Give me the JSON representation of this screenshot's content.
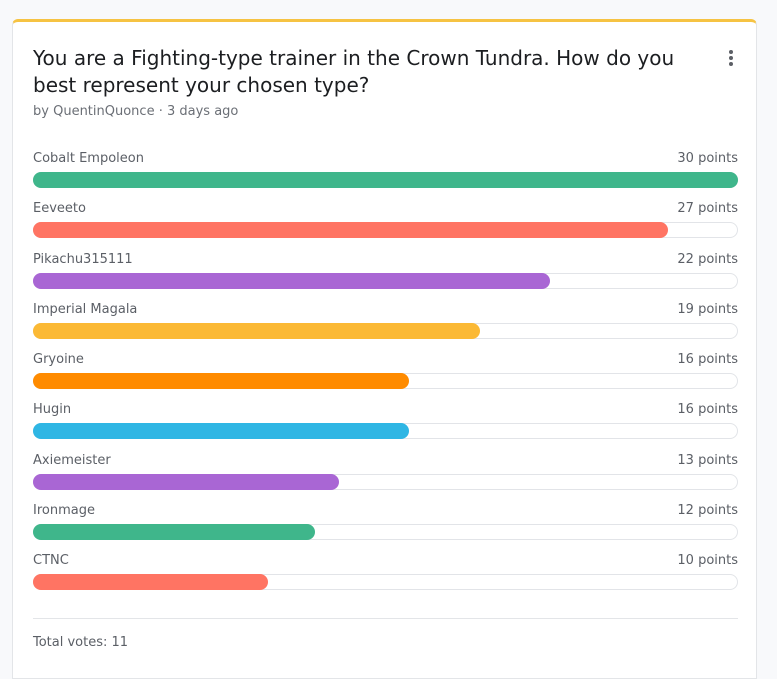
{
  "poll": {
    "title": "You are a Fighting-type trainer in the Crown Tundra. How do you best represent your chosen type?",
    "author_prefix": "by",
    "author": "QuentinQuonce",
    "separator": "·",
    "time_ago": "3 days ago",
    "menu_icon": "vertical-ellipsis-icon",
    "accent_color": "#f6c343",
    "max_points": 30,
    "options": [
      {
        "name": "Cobalt Empoleon",
        "points": 30,
        "points_label": "30 points",
        "color": "#3fb68b"
      },
      {
        "name": "Eeveeto",
        "points": 27,
        "points_label": "27 points",
        "color": "#ff7463"
      },
      {
        "name": "Pikachu315111",
        "points": 22,
        "points_label": "22 points",
        "color": "#a966d4"
      },
      {
        "name": "Imperial Magala",
        "points": 19,
        "points_label": "19 points",
        "color": "#fbb935"
      },
      {
        "name": "Gryoine",
        "points": 16,
        "points_label": "16 points",
        "color": "#ff8b00"
      },
      {
        "name": "Hugin",
        "points": 16,
        "points_label": "16 points",
        "color": "#2fb6e4"
      },
      {
        "name": "Axiemeister",
        "points": 13,
        "points_label": "13 points",
        "color": "#a966d4"
      },
      {
        "name": "Ironmage",
        "points": 12,
        "points_label": "12 points",
        "color": "#3fb68b"
      },
      {
        "name": "CTNC",
        "points": 10,
        "points_label": "10 points",
        "color": "#ff7463"
      }
    ],
    "total_votes_label": "Total votes: 11"
  }
}
